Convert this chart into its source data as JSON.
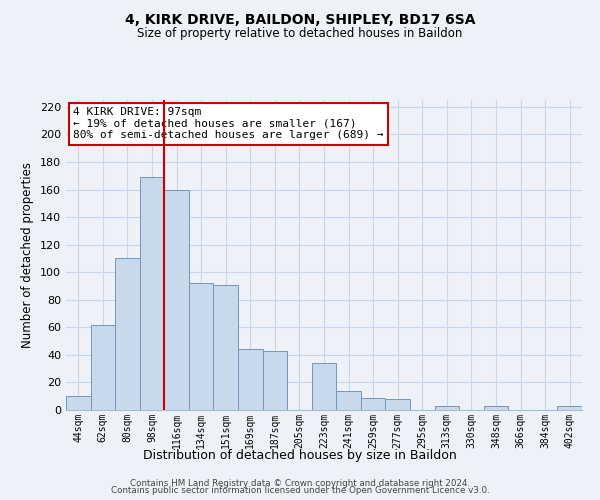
{
  "title": "4, KIRK DRIVE, BAILDON, SHIPLEY, BD17 6SA",
  "subtitle": "Size of property relative to detached houses in Baildon",
  "xlabel": "Distribution of detached houses by size in Baildon",
  "ylabel": "Number of detached properties",
  "categories": [
    "44sqm",
    "62sqm",
    "80sqm",
    "98sqm",
    "116sqm",
    "134sqm",
    "151sqm",
    "169sqm",
    "187sqm",
    "205sqm",
    "223sqm",
    "241sqm",
    "259sqm",
    "277sqm",
    "295sqm",
    "313sqm",
    "330sqm",
    "348sqm",
    "366sqm",
    "384sqm",
    "402sqm"
  ],
  "values": [
    10,
    62,
    110,
    169,
    160,
    92,
    91,
    44,
    43,
    0,
    34,
    14,
    9,
    8,
    0,
    3,
    0,
    3,
    0,
    0,
    3
  ],
  "bar_color": "#c9d9ec",
  "bar_edge_color": "#7097c0",
  "vline_x_index": 3,
  "vline_color": "#cc0000",
  "annotation_title": "4 KIRK DRIVE: 97sqm",
  "annotation_line1": "← 19% of detached houses are smaller (167)",
  "annotation_line2": "80% of semi-detached houses are larger (689) →",
  "annotation_box_color": "#cc0000",
  "ylim": [
    0,
    225
  ],
  "yticks": [
    0,
    20,
    40,
    60,
    80,
    100,
    120,
    140,
    160,
    180,
    200,
    220
  ],
  "footer_line1": "Contains HM Land Registry data © Crown copyright and database right 2024.",
  "footer_line2": "Contains public sector information licensed under the Open Government Licence v3.0.",
  "background_color": "#eef2f8",
  "grid_color": "#c8d4e8",
  "spine_color": "#aabbcc"
}
